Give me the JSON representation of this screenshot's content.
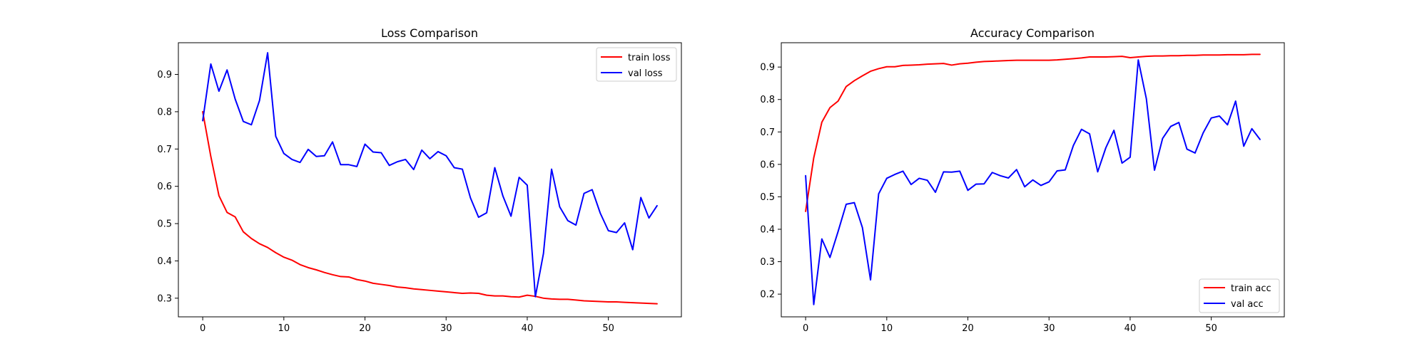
{
  "chart_data": [
    {
      "type": "line",
      "title": "Loss Comparison",
      "xlabel": "",
      "ylabel": "",
      "xlim": [
        -3,
        59
      ],
      "ylim": [
        0.25,
        0.985
      ],
      "x_ticks": [
        0,
        10,
        20,
        30,
        40,
        50
      ],
      "y_ticks": [
        0.3,
        0.4,
        0.5,
        0.6,
        0.7,
        0.8,
        0.9
      ],
      "grid": false,
      "legend": "top-right",
      "series": [
        {
          "name": "train loss",
          "color": "#ff0000",
          "values": [
            0.8,
            0.68,
            0.575,
            0.53,
            0.518,
            0.478,
            0.46,
            0.446,
            0.436,
            0.422,
            0.41,
            0.402,
            0.39,
            0.382,
            0.376,
            0.369,
            0.363,
            0.358,
            0.357,
            0.35,
            0.346,
            0.34,
            0.337,
            0.334,
            0.33,
            0.328,
            0.325,
            0.323,
            0.321,
            0.319,
            0.317,
            0.315,
            0.313,
            0.314,
            0.313,
            0.308,
            0.306,
            0.306,
            0.304,
            0.303,
            0.308,
            0.305,
            0.3,
            0.298,
            0.297,
            0.297,
            0.295,
            0.293,
            0.292,
            0.291,
            0.29,
            0.29,
            0.289,
            0.288,
            0.287,
            0.286,
            0.285
          ]
        },
        {
          "name": "val loss",
          "color": "#0000ff",
          "values": [
            0.776,
            0.928,
            0.855,
            0.912,
            0.834,
            0.774,
            0.765,
            0.83,
            0.958,
            0.734,
            0.688,
            0.672,
            0.664,
            0.699,
            0.68,
            0.682,
            0.719,
            0.658,
            0.658,
            0.653,
            0.713,
            0.692,
            0.69,
            0.656,
            0.666,
            0.672,
            0.645,
            0.697,
            0.674,
            0.693,
            0.682,
            0.65,
            0.646,
            0.569,
            0.517,
            0.529,
            0.65,
            0.574,
            0.52,
            0.624,
            0.603,
            0.304,
            0.42,
            0.646,
            0.545,
            0.508,
            0.496,
            0.581,
            0.591,
            0.528,
            0.481,
            0.476,
            0.502,
            0.43,
            0.57,
            0.515,
            0.548
          ]
        }
      ]
    },
    {
      "type": "line",
      "title": "Accuracy Comparison",
      "xlabel": "",
      "ylabel": "",
      "xlim": [
        -3,
        59
      ],
      "ylim": [
        0.13,
        0.975
      ],
      "x_ticks": [
        0,
        10,
        20,
        30,
        40,
        50
      ],
      "y_ticks": [
        0.2,
        0.3,
        0.4,
        0.5,
        0.6,
        0.7,
        0.8,
        0.9
      ],
      "grid": false,
      "legend": "bottom-right",
      "series": [
        {
          "name": "train acc",
          "color": "#ff0000",
          "values": [
            0.455,
            0.62,
            0.73,
            0.775,
            0.795,
            0.84,
            0.858,
            0.873,
            0.887,
            0.895,
            0.901,
            0.901,
            0.905,
            0.906,
            0.907,
            0.909,
            0.91,
            0.911,
            0.906,
            0.91,
            0.912,
            0.915,
            0.917,
            0.918,
            0.919,
            0.92,
            0.921,
            0.921,
            0.921,
            0.921,
            0.921,
            0.922,
            0.924,
            0.926,
            0.928,
            0.931,
            0.931,
            0.931,
            0.932,
            0.933,
            0.929,
            0.931,
            0.933,
            0.934,
            0.934,
            0.935,
            0.935,
            0.936,
            0.936,
            0.937,
            0.937,
            0.937,
            0.938,
            0.938,
            0.938,
            0.939,
            0.939
          ]
        },
        {
          "name": "val acc",
          "color": "#0000ff",
          "values": [
            0.565,
            0.168,
            0.37,
            0.313,
            0.393,
            0.477,
            0.482,
            0.405,
            0.244,
            0.509,
            0.557,
            0.569,
            0.579,
            0.538,
            0.557,
            0.551,
            0.514,
            0.577,
            0.576,
            0.579,
            0.52,
            0.539,
            0.54,
            0.575,
            0.565,
            0.558,
            0.584,
            0.531,
            0.552,
            0.535,
            0.546,
            0.58,
            0.583,
            0.658,
            0.708,
            0.694,
            0.577,
            0.651,
            0.705,
            0.604,
            0.622,
            0.922,
            0.802,
            0.582,
            0.68,
            0.717,
            0.729,
            0.647,
            0.635,
            0.697,
            0.743,
            0.749,
            0.722,
            0.795,
            0.656,
            0.71,
            0.677
          ]
        }
      ]
    }
  ]
}
